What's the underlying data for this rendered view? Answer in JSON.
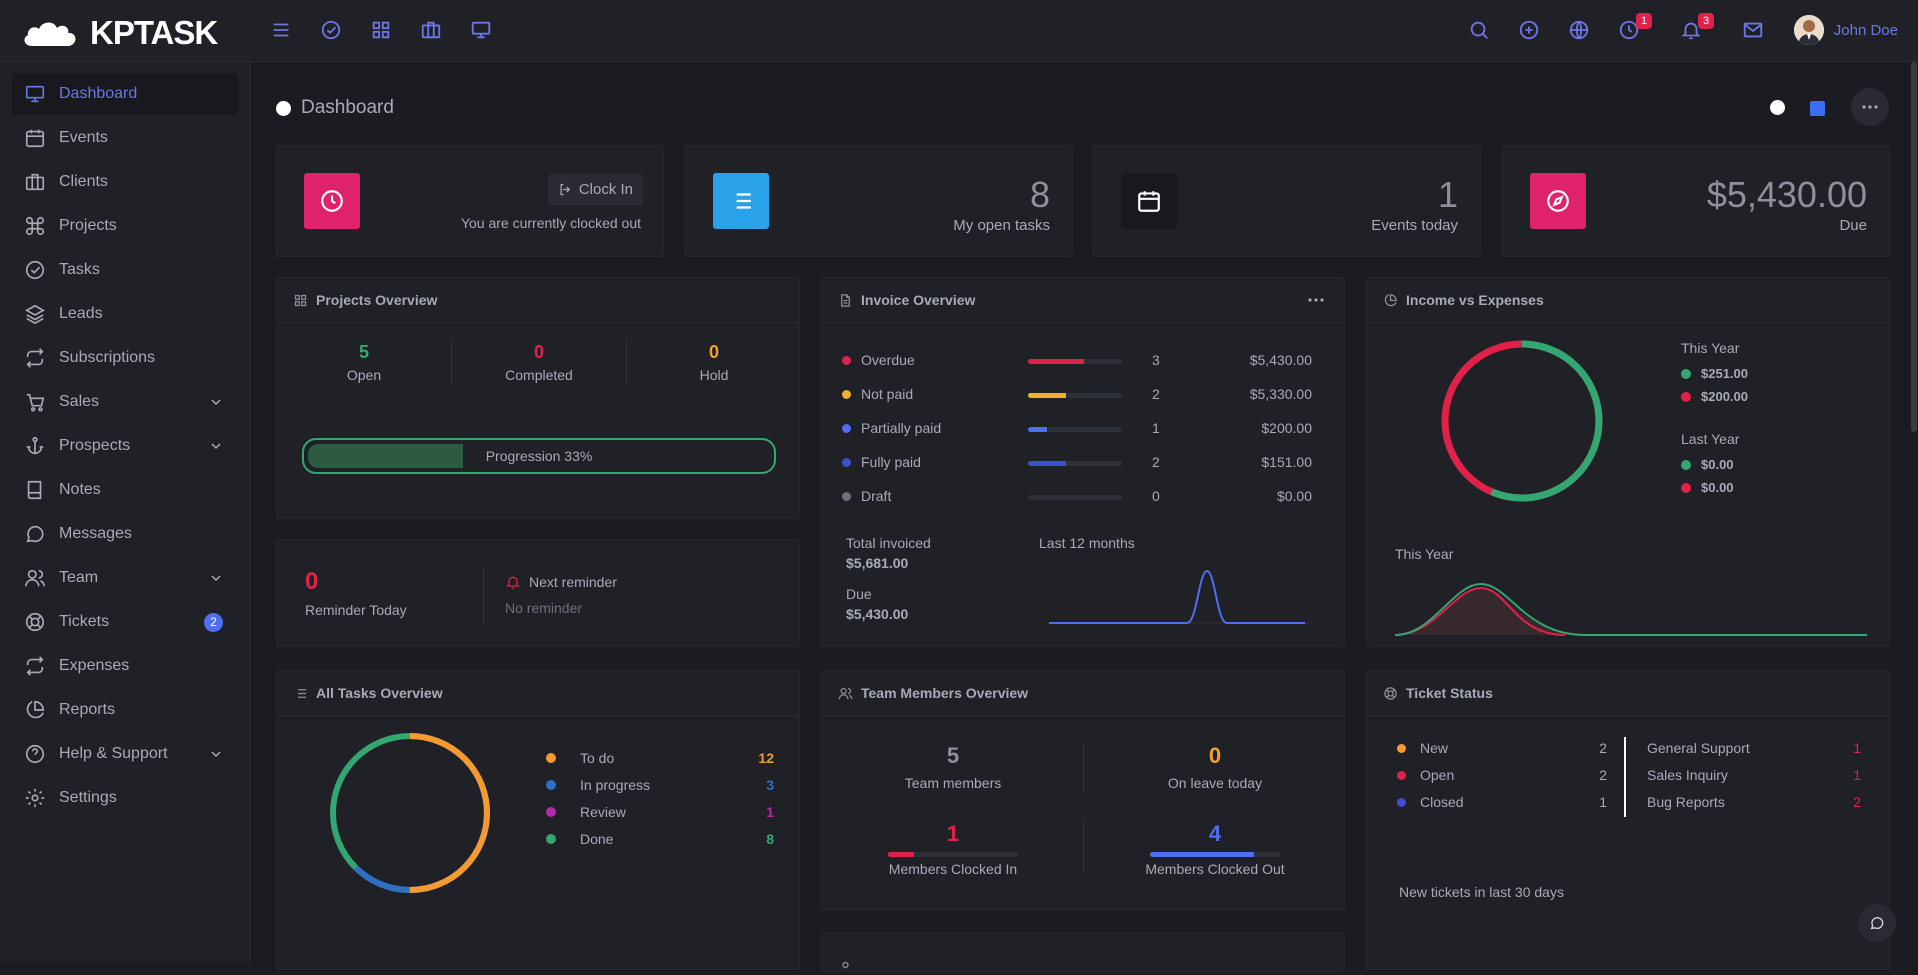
{
  "brand": {
    "name": "KPTASK"
  },
  "topbar": {
    "icons": [
      "menu-icon",
      "check-circle-icon",
      "grid-icon",
      "briefcase-icon",
      "monitor-icon"
    ],
    "right_icons": [
      "search-icon",
      "plus-circle-icon",
      "globe-icon",
      "clock-icon",
      "bell-icon",
      "mail-icon"
    ],
    "clock_badge": "1",
    "bell_badge": "3",
    "user_name": "John Doe"
  },
  "sidebar": {
    "items": [
      {
        "label": "Dashboard",
        "icon": "monitor-icon",
        "active": true
      },
      {
        "label": "Events",
        "icon": "calendar-icon"
      },
      {
        "label": "Clients",
        "icon": "briefcase-icon"
      },
      {
        "label": "Projects",
        "icon": "command-icon"
      },
      {
        "label": "Tasks",
        "icon": "check-circle-icon"
      },
      {
        "label": "Leads",
        "icon": "layers-icon"
      },
      {
        "label": "Subscriptions",
        "icon": "repeat-icon"
      },
      {
        "label": "Sales",
        "icon": "cart-icon",
        "chevron": true
      },
      {
        "label": "Prospects",
        "icon": "anchor-icon",
        "chevron": true
      },
      {
        "label": "Notes",
        "icon": "book-icon"
      },
      {
        "label": "Messages",
        "icon": "message-icon"
      },
      {
        "label": "Team",
        "icon": "users-icon",
        "chevron": true
      },
      {
        "label": "Tickets",
        "icon": "lifebuoy-icon",
        "count": "2"
      },
      {
        "label": "Expenses",
        "icon": "repeat-icon"
      },
      {
        "label": "Reports",
        "icon": "pie-chart-icon"
      },
      {
        "label": "Help & Support",
        "icon": "help-circle-icon",
        "chevron": true
      },
      {
        "label": "Settings",
        "icon": "gear-icon"
      }
    ]
  },
  "page": {
    "title": "Dashboard"
  },
  "stats": {
    "clock": {
      "button": "Clock In",
      "status": "You are currently clocked out"
    },
    "tasks": {
      "value": "8",
      "label": "My open tasks"
    },
    "events": {
      "value": "1",
      "label": "Events today"
    },
    "due": {
      "value": "$5,430.00",
      "label": "Due"
    }
  },
  "projects_overview": {
    "title": "Projects Overview",
    "open": {
      "value": "5",
      "label": "Open"
    },
    "completed": {
      "value": "0",
      "label": "Completed"
    },
    "hold": {
      "value": "0",
      "label": "Hold"
    },
    "progress_label": "Progression 33%",
    "progress": 0.33
  },
  "reminder": {
    "count": "0",
    "label": "Reminder Today",
    "next_title": "Next reminder",
    "next_value": "No reminder"
  },
  "invoice_overview": {
    "title": "Invoice Overview",
    "rows": [
      {
        "label": "Overdue",
        "count": "3",
        "amount": "$5,430.00",
        "color": "#e0224a",
        "fill": 0.6
      },
      {
        "label": "Not paid",
        "count": "2",
        "amount": "$5,330.00",
        "color": "#f0b12e",
        "fill": 0.4
      },
      {
        "label": "Partially paid",
        "count": "1",
        "amount": "$200.00",
        "color": "#4f6ef0",
        "fill": 0.2
      },
      {
        "label": "Fully paid",
        "count": "2",
        "amount": "$151.00",
        "color": "#3f4fd0",
        "fill": 0.4
      },
      {
        "label": "Draft",
        "count": "0",
        "amount": "$0.00",
        "color": "#6e717b",
        "fill": 0
      }
    ],
    "total_label": "Total invoiced",
    "total_value": "$5,681.00",
    "due_label": "Due",
    "due_value": "$5,430.00",
    "chart_label": "Last 12 months"
  },
  "income_expenses": {
    "title": "Income vs Expenses",
    "this_year_label": "This Year",
    "this_year_income": "$251.00",
    "this_year_expense": "$200.00",
    "last_year_label": "Last Year",
    "last_year_income": "$0.00",
    "last_year_expense": "$0.00",
    "chart_label": "This Year",
    "income_color": "#33a772",
    "expense_color": "#e0224a"
  },
  "all_tasks": {
    "title": "All Tasks Overview",
    "items": [
      {
        "label": "To do",
        "value": "12",
        "color": "#f59a2e"
      },
      {
        "label": "In progress",
        "value": "3",
        "color": "#2f6fc4"
      },
      {
        "label": "Review",
        "value": "1",
        "color": "#b12cab"
      },
      {
        "label": "Done",
        "value": "8",
        "color": "#33a772"
      }
    ]
  },
  "team": {
    "title": "Team Members Overview",
    "members": {
      "value": "5",
      "label": "Team members"
    },
    "leave": {
      "value": "0",
      "label": "On leave today"
    },
    "clocked_in": {
      "value": "1",
      "label": "Members Clocked In",
      "fill": 0.2
    },
    "clocked_out": {
      "value": "4",
      "label": "Members Clocked Out",
      "fill": 0.8
    }
  },
  "tickets": {
    "title": "Ticket Status",
    "status": [
      {
        "label": "New",
        "value": "2",
        "color": "#f59a2e"
      },
      {
        "label": "Open",
        "value": "2",
        "color": "#e0224a"
      },
      {
        "label": "Closed",
        "value": "1",
        "color": "#3f4fd0"
      }
    ],
    "types": [
      {
        "label": "General Support",
        "value": "1"
      },
      {
        "label": "Sales Inquiry",
        "value": "1"
      },
      {
        "label": "Bug Reports",
        "value": "2"
      }
    ],
    "footer": "New tickets in last 30 days"
  }
}
